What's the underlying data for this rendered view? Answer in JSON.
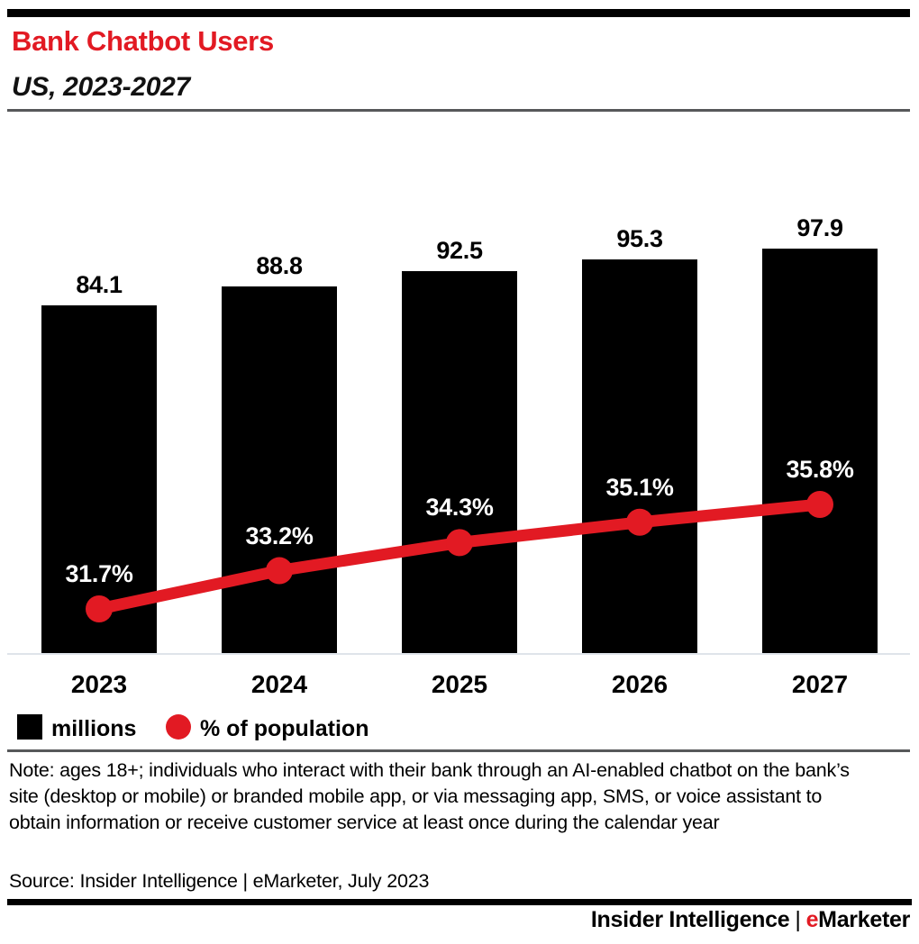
{
  "header": {
    "title": "Bank Chatbot Users",
    "subtitle": "US, 2023-2027"
  },
  "chart_data": {
    "type": "bar",
    "title": "Bank Chatbot Users",
    "subtitle": "US, 2023-2027",
    "categories": [
      "2023",
      "2024",
      "2025",
      "2026",
      "2027"
    ],
    "series": [
      {
        "name": "millions",
        "type": "bar",
        "values": [
          84.1,
          88.8,
          92.5,
          95.3,
          97.9
        ],
        "color": "#000000",
        "value_suffix": ""
      },
      {
        "name": "% of population",
        "type": "line",
        "values": [
          31.7,
          33.2,
          34.3,
          35.1,
          35.8
        ],
        "color": "#e21a23",
        "value_suffix": "%"
      }
    ],
    "xlabel": "",
    "ylabel": "",
    "grid": false,
    "legend_position": "bottom-left",
    "bar_axis_min": 0
  },
  "legend": {
    "items": [
      {
        "label": "millions",
        "color": "#000000",
        "shape": "square"
      },
      {
        "label": "% of population",
        "color": "#e21a23",
        "shape": "circle"
      }
    ]
  },
  "note": "Note: ages 18+; individuals who interact with their bank through an AI-enabled chatbot on the bank’s site (desktop or mobile) or branded mobile app, or via messaging app, SMS, or voice assistant to obtain information or receive customer service at least once during the calendar year",
  "source": "Source: Insider Intelligence | eMarketer, July 2023",
  "footer": {
    "brand_primary": "Insider Intelligence",
    "separator": "|",
    "brand_e": "e",
    "brand_rest": "Marketer"
  },
  "colors": {
    "accent_red": "#e21a23",
    "bar_black": "#000000",
    "divider_gray": "#57585a",
    "axis_light": "#dfe4ea"
  }
}
